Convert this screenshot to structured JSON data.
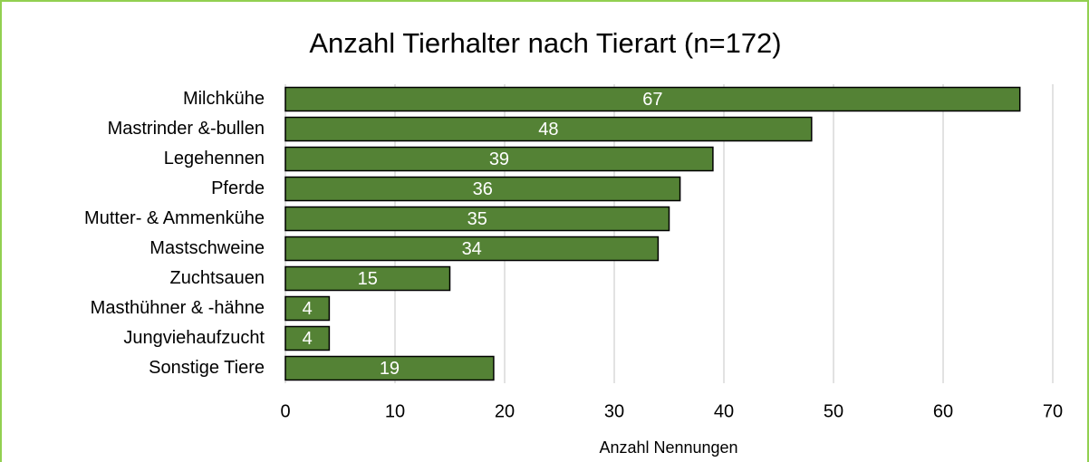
{
  "chart_data": {
    "type": "bar",
    "orientation": "horizontal",
    "title": "Anzahl Tierhalter nach Tierart (n=172)",
    "x_label": "Anzahl Nennungen",
    "categories": [
      "Milchkühe",
      "Mastrinder &-bullen",
      "Legehennen",
      "Pferde",
      "Mutter- & Ammenkühe",
      "Mastschweine",
      "Zuchtsauen",
      "Masthühner & -hähne",
      "Jungviehaufzucht",
      "Sonstige Tiere"
    ],
    "values": [
      67,
      48,
      39,
      36,
      35,
      34,
      15,
      4,
      4,
      19
    ],
    "color": "#548235",
    "xlim": [
      0,
      70
    ],
    "xticks": [
      0,
      10,
      20,
      30,
      40,
      50,
      60,
      70
    ],
    "grid": true
  }
}
